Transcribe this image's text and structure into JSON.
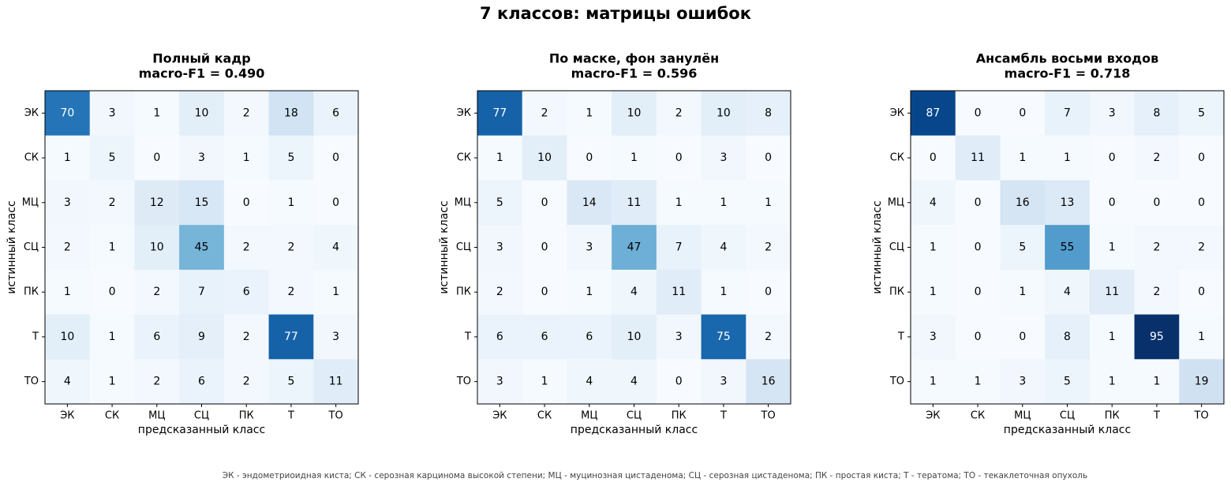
{
  "title": "7 классов: матрицы ошибок",
  "footnote": "ЭК - эндометриоидная киста; СК - серозная карцинома высокой степени; МЦ - муцинозная цистаденома; СЦ - серозная цистаденома; ПК - простая киста; Т - тератома; ТО - текаклеточная опухоль",
  "chart_data": [
    {
      "type": "heatmap",
      "title": "Полный кадр",
      "subtitle": "macro-F1 = 0.490",
      "colormap": "Blues",
      "xlabel": "предсказанный класс",
      "ylabel": "истинный класс",
      "categories": [
        "ЭК",
        "СК",
        "МЦ",
        "СЦ",
        "ПК",
        "Т",
        "ТО"
      ],
      "y_categories": [
        "ЭК",
        "СК",
        "МЦ",
        "СЦ",
        "ПК",
        "Т",
        "ТО"
      ],
      "values": [
        [
          70,
          3,
          1,
          10,
          2,
          18,
          6
        ],
        [
          1,
          5,
          0,
          3,
          1,
          5,
          0
        ],
        [
          3,
          2,
          12,
          15,
          0,
          1,
          0
        ],
        [
          2,
          1,
          10,
          45,
          2,
          2,
          4
        ],
        [
          1,
          0,
          2,
          7,
          6,
          2,
          1
        ],
        [
          10,
          1,
          6,
          9,
          2,
          77,
          3
        ],
        [
          4,
          1,
          2,
          6,
          2,
          5,
          11
        ]
      ]
    },
    {
      "type": "heatmap",
      "title": "По маске, фон занулён",
      "subtitle": "macro-F1 = 0.596",
      "colormap": "Blues",
      "xlabel": "предсказанный класс",
      "ylabel": "истинный класс",
      "categories": [
        "ЭК",
        "СК",
        "МЦ",
        "СЦ",
        "ПК",
        "Т",
        "ТО"
      ],
      "y_categories": [
        "ЭК",
        "СК",
        "МЦ",
        "СЦ",
        "ПК",
        "Т",
        "ТО"
      ],
      "values": [
        [
          77,
          2,
          1,
          10,
          2,
          10,
          8
        ],
        [
          1,
          10,
          0,
          1,
          0,
          3,
          0
        ],
        [
          5,
          0,
          14,
          11,
          1,
          1,
          1
        ],
        [
          3,
          0,
          3,
          47,
          7,
          4,
          2
        ],
        [
          2,
          0,
          1,
          4,
          11,
          1,
          0
        ],
        [
          6,
          6,
          6,
          10,
          3,
          75,
          2
        ],
        [
          3,
          1,
          4,
          4,
          0,
          3,
          16
        ]
      ]
    },
    {
      "type": "heatmap",
      "title": "Ансамбль восьми входов",
      "subtitle": "macro-F1 = 0.718",
      "colormap": "Blues",
      "xlabel": "предсказанный класс",
      "ylabel": "истинный класс",
      "categories": [
        "ЭК",
        "СК",
        "МЦ",
        "СЦ",
        "ПК",
        "Т",
        "ТО"
      ],
      "y_categories": [
        "ЭК",
        "СК",
        "МЦ",
        "СЦ",
        "ПК",
        "Т",
        "ТО"
      ],
      "values": [
        [
          87,
          0,
          0,
          7,
          3,
          8,
          5
        ],
        [
          0,
          11,
          1,
          1,
          0,
          2,
          0
        ],
        [
          4,
          0,
          16,
          13,
          0,
          0,
          0
        ],
        [
          1,
          0,
          5,
          55,
          1,
          2,
          2
        ],
        [
          1,
          0,
          1,
          4,
          11,
          2,
          0
        ],
        [
          3,
          0,
          0,
          8,
          1,
          95,
          1
        ],
        [
          1,
          1,
          3,
          5,
          1,
          1,
          19
        ]
      ]
    }
  ]
}
